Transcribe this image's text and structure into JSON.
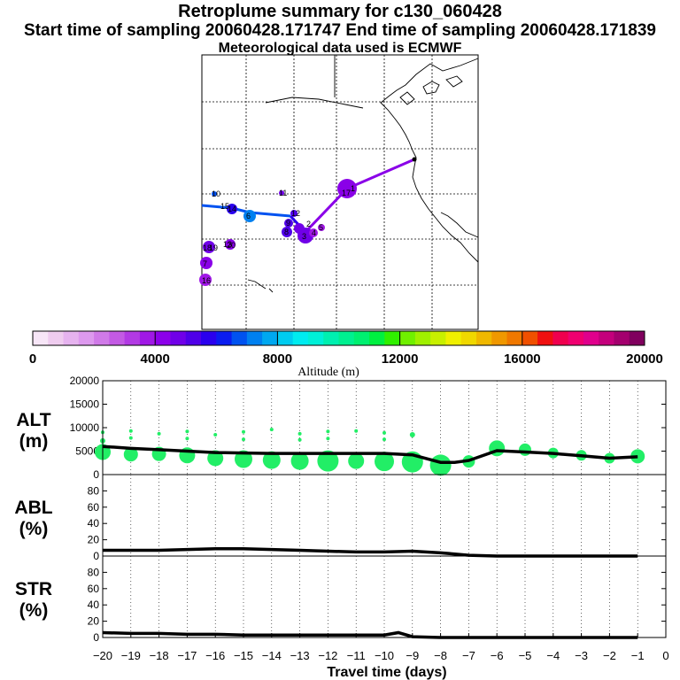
{
  "header": {
    "title": "Retroplume summary for c130_060428",
    "subtitle": "Start time of sampling 20060428.171747     End time of sampling 20060428.171839",
    "met_line": "Meteorological data used is ECMWF"
  },
  "colorbar": {
    "label": "Altitude (m)",
    "tick_labels": [
      "0",
      "4000",
      "8000",
      "12000",
      "16000",
      "20000"
    ],
    "range": [
      0,
      20000
    ],
    "colors": [
      "#f7e6f7",
      "#efccef",
      "#e6b3ef",
      "#dd99ee",
      "#d07ae8",
      "#c35ae4",
      "#b23ae4",
      "#a018e6",
      "#8c00ea",
      "#7000e8",
      "#4f00e8",
      "#2a00ee",
      "#0a1cf0",
      "#0052f0",
      "#0080f0",
      "#00a8f0",
      "#00ccf0",
      "#00ecf0",
      "#00f0d8",
      "#00f0b0",
      "#00f090",
      "#00f070",
      "#00f040",
      "#30f000",
      "#70f000",
      "#a0f000",
      "#c8f000",
      "#f0f000",
      "#f0d800",
      "#f0b800",
      "#f09800",
      "#f07800",
      "#f05000",
      "#f01010",
      "#f0004e",
      "#f00070",
      "#e0008c",
      "#c4007c",
      "#a4006e",
      "#80005e"
    ]
  },
  "map": {
    "day_labels": [
      "1",
      "2",
      "3",
      "4",
      "5",
      "6",
      "7",
      "8",
      "9",
      "10",
      "11",
      "12",
      "13",
      "14",
      "15",
      "16",
      "17",
      "18",
      "19",
      "20"
    ],
    "accent": "#8a00e8"
  },
  "chart_data": [
    {
      "type": "line",
      "title": "ALT (m)",
      "ylabel_top": "ALT",
      "ylabel_bottom": "(m)",
      "xlabel": "Travel time (days)",
      "xlim": [
        -20,
        0
      ],
      "ylim": [
        0,
        20000
      ],
      "yticks": [
        "0",
        "5000",
        "10000",
        "15000",
        "20000"
      ],
      "x": [
        -20,
        -19,
        -18,
        -17,
        -16,
        -15,
        -14,
        -13,
        -12,
        -11,
        -10,
        -9,
        -8,
        -7.5,
        -7,
        -6,
        -5,
        -4,
        -3,
        -2,
        -1
      ],
      "series": [
        {
          "name": "mean altitude",
          "values": [
            6000,
            5600,
            5300,
            5000,
            4700,
            4600,
            4500,
            4500,
            4500,
            4500,
            4500,
            4200,
            2600,
            2600,
            3000,
            5100,
            4800,
            4500,
            4000,
            3500,
            3800
          ]
        }
      ],
      "plume_points": {
        "x": [
          -20,
          -19,
          -18,
          -17,
          -16,
          -15,
          -14,
          -13,
          -12,
          -11,
          -10,
          -9,
          -8,
          -7,
          -6,
          -5,
          -4,
          -3,
          -2,
          -1
        ],
        "values": [
          4800,
          4300,
          4400,
          4100,
          3500,
          3300,
          3100,
          2900,
          2900,
          2900,
          2800,
          2700,
          2000,
          2800,
          5600,
          5300,
          4600,
          4100,
          3500,
          3900
        ],
        "sizes": [
          9,
          8,
          8,
          9,
          9,
          10,
          10,
          10,
          12,
          9,
          11,
          12,
          12,
          7,
          9,
          7,
          6,
          6,
          6,
          8
        ]
      },
      "high_points": {
        "x": [
          -20,
          -20,
          -19,
          -19,
          -18,
          -17,
          -17,
          -16,
          -15,
          -15,
          -14,
          -13,
          -13,
          -12,
          -12,
          -11,
          -10,
          -10,
          -9
        ],
        "values": [
          9000,
          7200,
          9300,
          7800,
          8700,
          9200,
          7700,
          8500,
          9100,
          7500,
          9600,
          8700,
          7400,
          9200,
          7700,
          9300,
          8900,
          7500,
          8500
        ],
        "sizes": [
          2,
          3,
          2,
          2,
          2,
          2,
          2,
          2,
          2,
          2,
          2,
          2,
          2,
          2,
          2,
          2,
          2,
          2,
          3
        ]
      }
    },
    {
      "type": "line",
      "title": "ABL (%)",
      "ylabel_top": "ABL",
      "ylabel_bottom": "(%)",
      "xlim": [
        -20,
        0
      ],
      "ylim": [
        0,
        100
      ],
      "yticks": [
        "0",
        "20",
        "40",
        "60",
        "80"
      ],
      "x": [
        -20,
        -19,
        -18,
        -17,
        -16,
        -15,
        -14,
        -13,
        -12,
        -11,
        -10,
        -9,
        -8,
        -7,
        -6,
        -5,
        -4,
        -3,
        -2,
        -1
      ],
      "series": [
        {
          "name": "ABL fraction",
          "values": [
            7,
            7,
            7,
            8,
            9,
            9,
            8,
            7,
            6,
            5,
            5,
            6,
            4,
            1,
            0,
            0,
            0,
            0,
            0,
            0
          ]
        }
      ]
    },
    {
      "type": "line",
      "title": "STR (%)",
      "ylabel_top": "STR",
      "ylabel_bottom": "(%)",
      "xlim": [
        -20,
        0
      ],
      "ylim": [
        0,
        100
      ],
      "yticks": [
        "0",
        "20",
        "40",
        "60",
        "80"
      ],
      "x": [
        -20,
        -19,
        -18,
        -17,
        -16,
        -15,
        -14,
        -13,
        -12,
        -11,
        -10,
        -9.5,
        -9,
        -8,
        -7,
        -6,
        -5,
        -4,
        -3,
        -2,
        -1
      ],
      "xticks": [
        "−20",
        "−19",
        "−18",
        "−17",
        "−16",
        "−15",
        "−14",
        "−13",
        "−12",
        "−11",
        "−10",
        "−9",
        "−8",
        "−7",
        "−6",
        "−5",
        "−4",
        "−3",
        "−2",
        "−1",
        "0"
      ],
      "series": [
        {
          "name": "stratospheric fraction",
          "values": [
            6,
            5,
            5,
            4,
            4,
            3,
            3,
            3,
            3,
            3,
            3,
            6,
            1,
            0,
            0,
            0,
            0,
            0,
            0,
            0,
            0
          ]
        }
      ]
    }
  ]
}
